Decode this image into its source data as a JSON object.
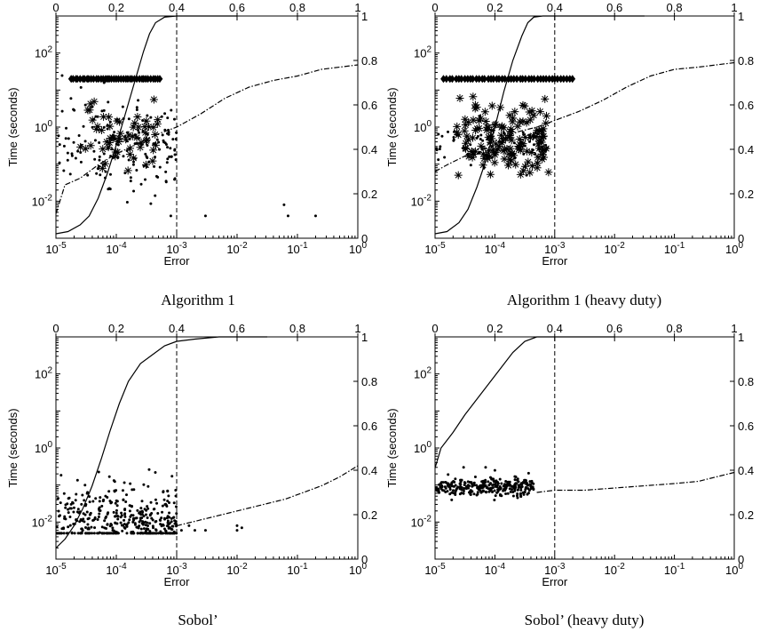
{
  "chart_data": [
    {
      "type": "scatter",
      "caption": "Algorithm 1",
      "xlabel": "Error",
      "ylabel": "Time (seconds)",
      "x_scale": "log",
      "xlim": [
        1e-05,
        1
      ],
      "x_ticks": [
        "10^-5",
        "10^-4",
        "10^-3",
        "10^-2",
        "10^-1",
        "10^0"
      ],
      "y_scale": "log",
      "ylim": [
        0.001,
        1000
      ],
      "y_ticks": [
        "10^-2",
        "10^0",
        "10^2"
      ],
      "top_axis": {
        "lim": [
          0,
          1
        ],
        "ticks": [
          "0",
          "0.2",
          "0.4",
          "0.6",
          "0.8",
          "1"
        ]
      },
      "right_axis": {
        "lim": [
          0,
          1
        ],
        "ticks": [
          "0",
          "0.2",
          "0.4",
          "0.6",
          "0.8",
          "1"
        ]
      },
      "reference_line_x": 0.001,
      "series": [
        {
          "kind": "dots",
          "n": 170,
          "x_log_range": [
            -5,
            -3
          ],
          "y_log_range": [
            -2.3,
            1.7
          ],
          "y_center": -0.5,
          "outliers": [
            [
              0.003,
              0.004
            ],
            [
              0.06,
              0.008
            ],
            [
              0.07,
              0.004
            ],
            [
              0.2,
              0.004
            ],
            [
              0.0008,
              0.004
            ]
          ]
        },
        {
          "kind": "stars",
          "n": 60,
          "x_log_range": [
            -4.7,
            -3.3
          ],
          "y_log_range": [
            -1.5,
            1.4
          ],
          "y_center": -0.2
        },
        {
          "kind": "diamonds",
          "n": 40,
          "x_log_range": [
            -4.75,
            -3.28
          ],
          "y_const": 20
        },
        {
          "kind": "solid-cdf",
          "points": [
            [
              -5,
              0.02
            ],
            [
              -4.8,
              0.03
            ],
            [
              -4.6,
              0.06
            ],
            [
              -4.45,
              0.1
            ],
            [
              -4.3,
              0.18
            ],
            [
              -4.15,
              0.29
            ],
            [
              -4,
              0.42
            ],
            [
              -3.85,
              0.56
            ],
            [
              -3.7,
              0.7
            ],
            [
              -3.55,
              0.84
            ],
            [
              -3.45,
              0.92
            ],
            [
              -3.35,
              0.97
            ],
            [
              -3.2,
              0.995
            ],
            [
              -3,
              1
            ],
            [
              -2.5,
              1
            ],
            [
              -2,
              1
            ]
          ]
        },
        {
          "kind": "dashdot-cdf",
          "points": [
            [
              -5,
              0.11
            ],
            [
              -4.85,
              0.24
            ],
            [
              -4.6,
              0.27
            ],
            [
              -4.3,
              0.33
            ],
            [
              -4,
              0.38
            ],
            [
              -3.6,
              0.43
            ],
            [
              -3.3,
              0.47
            ],
            [
              -3,
              0.5
            ],
            [
              -2.6,
              0.56
            ],
            [
              -2.2,
              0.63
            ],
            [
              -1.8,
              0.68
            ],
            [
              -1.4,
              0.71
            ],
            [
              -1,
              0.73
            ],
            [
              -0.6,
              0.76
            ],
            [
              -0.3,
              0.77
            ],
            [
              0,
              0.78
            ]
          ]
        }
      ]
    },
    {
      "type": "scatter",
      "caption": "Algorithm 1 (heavy duty)",
      "xlabel": "Error",
      "ylabel": "Time (seconds)",
      "x_scale": "log",
      "xlim": [
        1e-05,
        1
      ],
      "x_ticks": [
        "10^-5",
        "10^-4",
        "10^-3",
        "10^-2",
        "10^-1",
        "10^0"
      ],
      "y_scale": "log",
      "ylim": [
        0.001,
        1000
      ],
      "y_ticks": [
        "10^-2",
        "10^0",
        "10^2"
      ],
      "top_axis": {
        "lim": [
          0,
          1
        ],
        "ticks": [
          "0",
          "0.2",
          "0.4",
          "0.6",
          "0.8",
          "1"
        ]
      },
      "right_axis": {
        "lim": [
          0,
          1
        ],
        "ticks": [
          "0",
          "0.2",
          "0.4",
          "0.6",
          "0.8",
          "1"
        ]
      },
      "reference_line_x": 0.001,
      "series": [
        {
          "kind": "dots",
          "n": 70,
          "x_log_range": [
            -5,
            -3.1
          ],
          "y_log_range": [
            -1.3,
            0.6
          ],
          "y_center": -0.5,
          "outliers": []
        },
        {
          "kind": "stars",
          "n": 150,
          "x_log_range": [
            -4.7,
            -3.1
          ],
          "y_log_range": [
            -1.5,
            1.4
          ],
          "y_center": -0.3
        },
        {
          "kind": "diamonds",
          "n": 45,
          "x_log_range": [
            -4.85,
            -2.7
          ],
          "y_const": 20
        },
        {
          "kind": "solid-cdf",
          "points": [
            [
              -5,
              0.02
            ],
            [
              -4.8,
              0.03
            ],
            [
              -4.6,
              0.07
            ],
            [
              -4.45,
              0.13
            ],
            [
              -4.3,
              0.23
            ],
            [
              -4.15,
              0.35
            ],
            [
              -4,
              0.5
            ],
            [
              -3.85,
              0.66
            ],
            [
              -3.7,
              0.8
            ],
            [
              -3.55,
              0.91
            ],
            [
              -3.45,
              0.97
            ],
            [
              -3.35,
              0.995
            ],
            [
              -3.2,
              1
            ],
            [
              -2.5,
              1
            ],
            [
              -1.5,
              1
            ]
          ]
        },
        {
          "kind": "dashdot-cdf",
          "points": [
            [
              -5,
              0.3
            ],
            [
              -4.8,
              0.33
            ],
            [
              -4.5,
              0.37
            ],
            [
              -4.2,
              0.41
            ],
            [
              -3.9,
              0.45
            ],
            [
              -3.6,
              0.48
            ],
            [
              -3.3,
              0.5
            ],
            [
              -3,
              0.53
            ],
            [
              -2.6,
              0.57
            ],
            [
              -2.2,
              0.62
            ],
            [
              -1.8,
              0.68
            ],
            [
              -1.4,
              0.73
            ],
            [
              -1,
              0.76
            ],
            [
              -0.6,
              0.77
            ],
            [
              -0.3,
              0.78
            ],
            [
              0,
              0.79
            ]
          ]
        }
      ]
    },
    {
      "type": "scatter",
      "caption": "Sobol’",
      "xlabel": "Error",
      "ylabel": "Time (seconds)",
      "x_scale": "log",
      "xlim": [
        1e-05,
        1
      ],
      "x_ticks": [
        "10^-5",
        "10^-4",
        "10^-3",
        "10^-2",
        "10^-1",
        "10^0"
      ],
      "y_scale": "log",
      "ylim": [
        0.001,
        1000
      ],
      "y_ticks": [
        "10^-2",
        "10^0",
        "10^2"
      ],
      "top_axis": {
        "lim": [
          0,
          1
        ],
        "ticks": [
          "0",
          "0.2",
          "0.4",
          "0.6",
          "0.8",
          "1"
        ]
      },
      "right_axis": {
        "lim": [
          0,
          1
        ],
        "ticks": [
          "0",
          "0.2",
          "0.4",
          "0.6",
          "0.8",
          "1"
        ]
      },
      "reference_line_x": 0.001,
      "series": [
        {
          "kind": "dots",
          "n": 420,
          "x_log_range": [
            -5,
            -3
          ],
          "y_log_range": [
            -2.3,
            -0.3
          ],
          "y_center": -2.0,
          "outliers": [
            [
              0.0012,
              0.006
            ],
            [
              0.0016,
              0.008
            ],
            [
              0.002,
              0.006
            ],
            [
              0.003,
              0.006
            ],
            [
              0.01,
              0.006
            ],
            [
              0.012,
              0.007
            ],
            [
              0.01,
              0.008
            ]
          ]
        },
        {
          "kind": "solid-cdf",
          "points": [
            [
              -5,
              0.05
            ],
            [
              -4.85,
              0.09
            ],
            [
              -4.7,
              0.15
            ],
            [
              -4.55,
              0.23
            ],
            [
              -4.4,
              0.33
            ],
            [
              -4.25,
              0.45
            ],
            [
              -4.1,
              0.58
            ],
            [
              -3.95,
              0.7
            ],
            [
              -3.8,
              0.8
            ],
            [
              -3.6,
              0.88
            ],
            [
              -3.4,
              0.92
            ],
            [
              -3.2,
              0.96
            ],
            [
              -3,
              0.98
            ],
            [
              -2.7,
              0.99
            ],
            [
              -2.3,
              1
            ],
            [
              -1.5,
              1
            ]
          ]
        },
        {
          "kind": "dashdot-cdf",
          "points": [
            [
              -3,
              0.15
            ],
            [
              -2.7,
              0.17
            ],
            [
              -2.4,
              0.19
            ],
            [
              -2.1,
              0.21
            ],
            [
              -1.8,
              0.23
            ],
            [
              -1.5,
              0.25
            ],
            [
              -1.2,
              0.27
            ],
            [
              -0.9,
              0.3
            ],
            [
              -0.6,
              0.33
            ],
            [
              -0.3,
              0.37
            ],
            [
              0,
              0.42
            ]
          ]
        }
      ]
    },
    {
      "type": "scatter",
      "caption": "Sobol’ (heavy duty)",
      "xlabel": "Error",
      "ylabel": "Time (seconds)",
      "x_scale": "log",
      "xlim": [
        1e-05,
        1
      ],
      "x_ticks": [
        "10^-5",
        "10^-4",
        "10^-3",
        "10^-2",
        "10^-1",
        "10^0"
      ],
      "y_scale": "log",
      "ylim": [
        0.001,
        1000
      ],
      "y_ticks": [
        "10^-2",
        "10^0",
        "10^2"
      ],
      "top_axis": {
        "lim": [
          0,
          1
        ],
        "ticks": [
          "0",
          "0.2",
          "0.4",
          "0.6",
          "0.8",
          "1"
        ]
      },
      "right_axis": {
        "lim": [
          0,
          1
        ],
        "ticks": [
          "0",
          "0.2",
          "0.4",
          "0.6",
          "0.8",
          "1"
        ]
      },
      "reference_line_x": 0.001,
      "series": [
        {
          "kind": "dots",
          "n": 300,
          "x_log_range": [
            -5,
            -3.35
          ],
          "y_log_range": [
            -1.5,
            -0.6
          ],
          "y_center": -1.05,
          "outliers": [
            [
              3e-05,
              0.3
            ],
            [
              7e-05,
              0.3
            ],
            [
              0.0001,
              0.25
            ]
          ]
        },
        {
          "kind": "solid-cdf",
          "points": [
            [
              -5,
              0.41
            ],
            [
              -4.9,
              0.5
            ],
            [
              -4.7,
              0.57
            ],
            [
              -4.5,
              0.65
            ],
            [
              -4.3,
              0.72
            ],
            [
              -4.1,
              0.79
            ],
            [
              -3.9,
              0.86
            ],
            [
              -3.7,
              0.93
            ],
            [
              -3.5,
              0.98
            ],
            [
              -3.3,
              1
            ],
            [
              -3,
              1
            ],
            [
              -2,
              1
            ]
          ]
        },
        {
          "kind": "dashdot-cdf",
          "points": [
            [
              -3.3,
              0.3
            ],
            [
              -3,
              0.31
            ],
            [
              -2.5,
              0.31
            ],
            [
              -2,
              0.32
            ],
            [
              -1.5,
              0.33
            ],
            [
              -1,
              0.34
            ],
            [
              -0.6,
              0.35
            ],
            [
              -0.3,
              0.37
            ],
            [
              0,
              0.39
            ]
          ]
        }
      ]
    }
  ]
}
